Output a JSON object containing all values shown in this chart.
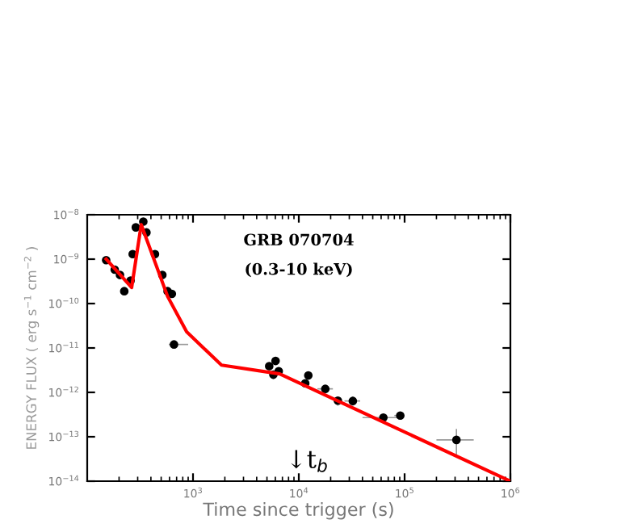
{
  "chart_data": {
    "type": "scatter",
    "title": "GRB 070704",
    "subtitle": "(0.3-10 keV)",
    "xlabel": "Time since trigger (s)",
    "ylabel": "ENERGY FLUX ( erg s$^{−1}$ cm$^{−2}$ )",
    "log": "xy",
    "xlim": [
      100,
      1000000
    ],
    "ylim": [
      1e-14,
      1e-08
    ],
    "xticks": [
      {
        "value": 1000,
        "label": "10$^{3}$"
      },
      {
        "value": 10000,
        "label": "10$^{4}$"
      },
      {
        "value": 100000,
        "label": "10$^{5}$"
      },
      {
        "value": 1000000,
        "label": "10$^{6}$"
      }
    ],
    "yticks": [
      {
        "value": 1e-14,
        "label": "10$^{−14}$"
      },
      {
        "value": 1e-13,
        "label": "10$^{−13}$"
      },
      {
        "value": 1e-12,
        "label": "10$^{−12}$"
      },
      {
        "value": 1e-11,
        "label": "10$^{−11}$"
      },
      {
        "value": 1e-10,
        "label": "10$^{−10}$"
      },
      {
        "value": 1e-09,
        "label": "10$^{−9}$"
      },
      {
        "value": 1e-08,
        "label": "10$^{−8}$"
      }
    ],
    "annotations": [
      "↓t$_{b}$"
    ],
    "series": [
      {
        "color": "#000000",
        "marker": "circle",
        "x": [
          151,
          182,
          204,
          224,
          257,
          269,
          288,
          339,
          363,
          437,
          513,
          575,
          631,
          661,
          5250,
          6030,
          5750,
          6460,
          11500,
          12300,
          17800,
          23400,
          32400,
          63000,
          91000,
          309000
        ],
        "values": [
          9.5e-10,
          5.8e-10,
          4.4e-10,
          1.9e-10,
          3.3e-10,
          1.3e-09,
          5.2e-09,
          7e-09,
          4e-09,
          1.3e-09,
          4.4e-10,
          1.9e-10,
          1.65e-10,
          1.2e-11,
          3.9e-12,
          5.1e-12,
          2.5e-12,
          3e-12,
          1.6e-12,
          2.4e-12,
          1.2e-12,
          6.5e-13,
          6.4e-13,
          2.7e-13,
          3e-13,
          8.5e-14
        ],
        "errors": [
          null,
          null,
          null,
          null,
          null,
          null,
          null,
          null,
          null,
          null,
          null,
          null,
          null,
          [
            1e-11,
            1.45e-11
          ],
          [
            3.2e-12,
            4.6e-12
          ],
          null,
          [
            2e-12,
            3e-12
          ],
          null,
          [
            1.3e-12,
            1.9e-12
          ],
          null,
          [
            1e-12,
            1.4e-12
          ],
          [
            5e-13,
            8e-13
          ],
          [
            5e-13,
            8e-13
          ],
          [
            2.2e-13,
            3.3e-13
          ],
          null,
          [
            4e-14,
            1.5e-13
          ]
        ],
        "xerrors": [
          null,
          null,
          null,
          null,
          null,
          null,
          null,
          null,
          null,
          null,
          null,
          null,
          null,
          [
            590,
            900
          ],
          null,
          null,
          null,
          null,
          null,
          null,
          [
            15000,
            21000
          ],
          null,
          [
            27000,
            38000
          ],
          [
            40000,
            90000
          ],
          [
            80000,
            100000
          ],
          [
            200000,
            450000
          ]
        ]
      },
      {
        "type": "line",
        "color": "#ff0000",
        "line_style": "solid",
        "x": [
          151,
          263,
          324,
          575,
          871,
          1860,
          6600,
          1000000
        ],
        "values": [
          1e-09,
          2.3e-10,
          6e-09,
          1.45e-10,
          2.3e-11,
          4.1e-12,
          2.6e-12,
          1e-14
        ]
      }
    ]
  }
}
